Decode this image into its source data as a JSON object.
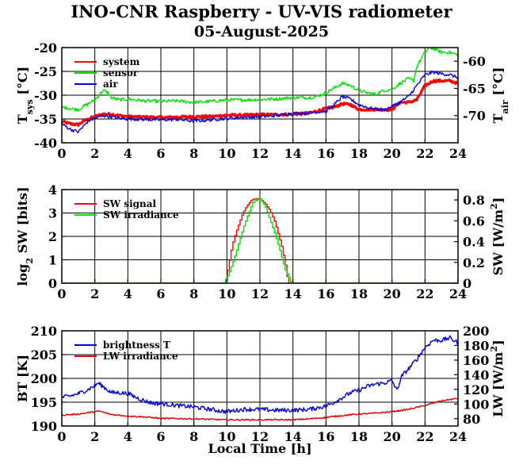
{
  "title": "INO-CNR Raspberry - UV-VIS radiometer",
  "subtitle": "05-August-2025",
  "chart_data": [
    {
      "type": "line",
      "xlabel": "",
      "xlim": [
        0,
        24
      ],
      "xticks": [
        "0",
        "2",
        "4",
        "6",
        "8",
        "10",
        "12",
        "14",
        "16",
        "18",
        "20",
        "22",
        "24"
      ],
      "ylabel": "T_sys [°C]",
      "ylim": [
        -40,
        -20
      ],
      "yticks": [
        "-40",
        "-35",
        "-30",
        "-25",
        "-20"
      ],
      "y2label": "T_air [°C]",
      "y2lim": [
        -75,
        -57.5
      ],
      "y2ticks": [
        "-70",
        "-65",
        "-60"
      ],
      "grid": true,
      "legend": "top-left",
      "series": [
        {
          "name": "system",
          "color": "#ff0000",
          "axis": "left",
          "width": 3.2,
          "jitter": 0.25,
          "points": [
            [
              0,
              -35.5
            ],
            [
              0.5,
              -36
            ],
            [
              1,
              -36.2
            ],
            [
              1.3,
              -35.5
            ],
            [
              1.6,
              -35
            ],
            [
              2,
              -34.5
            ],
            [
              2.5,
              -34
            ],
            [
              3,
              -34
            ],
            [
              3.5,
              -34.3
            ],
            [
              4,
              -34.5
            ],
            [
              5,
              -34.6
            ],
            [
              6,
              -34.7
            ],
            [
              7,
              -34.6
            ],
            [
              8,
              -34.5
            ],
            [
              9,
              -34.5
            ],
            [
              10,
              -34.2
            ],
            [
              11,
              -34.2
            ],
            [
              12,
              -34.1
            ],
            [
              13,
              -34.1
            ],
            [
              14,
              -34
            ],
            [
              15,
              -33.8
            ],
            [
              16,
              -32.8
            ],
            [
              16.5,
              -32.5
            ],
            [
              17,
              -31.8
            ],
            [
              17.5,
              -32
            ],
            [
              18,
              -33
            ],
            [
              19,
              -33
            ],
            [
              20,
              -33
            ],
            [
              20.5,
              -31.5
            ],
            [
              21,
              -31.5
            ],
            [
              21.5,
              -31
            ],
            [
              22,
              -28
            ],
            [
              22.5,
              -27
            ],
            [
              23,
              -27
            ],
            [
              23.5,
              -27
            ],
            [
              24,
              -27.5
            ]
          ]
        },
        {
          "name": "sensor",
          "color": "#00e000",
          "axis": "left",
          "width": 1.4,
          "jitter": 0.35,
          "points": [
            [
              0,
              -32.5
            ],
            [
              0.5,
              -32.8
            ],
            [
              1,
              -33
            ],
            [
              1.5,
              -32
            ],
            [
              2,
              -31
            ],
            [
              2.3,
              -29.8
            ],
            [
              2.5,
              -29
            ],
            [
              2.8,
              -29.5
            ],
            [
              3,
              -30.5
            ],
            [
              3.5,
              -31
            ],
            [
              4,
              -30.8
            ],
            [
              5,
              -31.2
            ],
            [
              6,
              -31.3
            ],
            [
              7,
              -31.2
            ],
            [
              8,
              -31.5
            ],
            [
              9,
              -31.3
            ],
            [
              10,
              -31
            ],
            [
              11,
              -31
            ],
            [
              12,
              -30.9
            ],
            [
              13,
              -30.8
            ],
            [
              14,
              -30.5
            ],
            [
              15,
              -30.5
            ],
            [
              15.5,
              -30.2
            ],
            [
              16,
              -29.5
            ],
            [
              16.5,
              -28.5
            ],
            [
              17,
              -27.5
            ],
            [
              17.5,
              -28
            ],
            [
              18,
              -29
            ],
            [
              18.5,
              -29.5
            ],
            [
              19,
              -29.8
            ],
            [
              19.5,
              -29
            ],
            [
              20,
              -28.8
            ],
            [
              20.5,
              -27.5
            ],
            [
              21,
              -26.5
            ],
            [
              21.3,
              -27
            ],
            [
              21.5,
              -24
            ],
            [
              22,
              -21
            ],
            [
              22.3,
              -20
            ],
            [
              22.7,
              -20.5
            ],
            [
              23,
              -21
            ],
            [
              23.5,
              -21
            ],
            [
              24,
              -21.5
            ]
          ]
        },
        {
          "name": "air",
          "color": "#0000dd",
          "axis": "right",
          "width": 1.4,
          "jitter": 0.3,
          "points": [
            [
              0,
              -71.5
            ],
            [
              0.5,
              -72.5
            ],
            [
              1,
              -73
            ],
            [
              1.3,
              -72
            ],
            [
              1.6,
              -71
            ],
            [
              2,
              -70.5
            ],
            [
              2.5,
              -70
            ],
            [
              3,
              -70.2
            ],
            [
              3.5,
              -70.5
            ],
            [
              4,
              -70.6
            ],
            [
              5,
              -70.7
            ],
            [
              6,
              -70.8
            ],
            [
              7,
              -70.7
            ],
            [
              8,
              -71
            ],
            [
              9,
              -70.8
            ],
            [
              10,
              -70.5
            ],
            [
              11,
              -70.3
            ],
            [
              12,
              -70.2
            ],
            [
              13,
              -70
            ],
            [
              14,
              -69.6
            ],
            [
              15,
              -69.5
            ],
            [
              15.5,
              -69.3
            ],
            [
              16,
              -69.2
            ],
            [
              16.5,
              -68
            ],
            [
              17,
              -66.5
            ],
            [
              17.5,
              -67
            ],
            [
              18,
              -68
            ],
            [
              18.5,
              -68.5
            ],
            [
              19,
              -68.8
            ],
            [
              19.5,
              -69
            ],
            [
              20,
              -68.3
            ],
            [
              20.5,
              -67.5
            ],
            [
              21,
              -66.5
            ],
            [
              21.5,
              -64.5
            ],
            [
              22,
              -62.5
            ],
            [
              22.5,
              -62
            ],
            [
              23,
              -62.3
            ],
            [
              23.5,
              -62.5
            ],
            [
              24,
              -63
            ]
          ]
        }
      ]
    },
    {
      "type": "line",
      "xlabel": "",
      "xlim": [
        0,
        24
      ],
      "xticks": [
        "0",
        "2",
        "4",
        "6",
        "8",
        "10",
        "12",
        "14",
        "16",
        "18",
        "20",
        "22",
        "24"
      ],
      "ylabel": "log2 SW [bits]",
      "ylim": [
        0,
        4
      ],
      "yticks": [
        "0",
        "1",
        "2",
        "3",
        "4"
      ],
      "y2label": "SW [W/m2]",
      "y2lim": [
        0,
        0.9
      ],
      "y2ticks": [
        "0",
        "0.2",
        "0.4",
        "0.6",
        "0.8"
      ],
      "grid": true,
      "legend": "top-left",
      "series": [
        {
          "name": "SW signal",
          "color": "#ff0000",
          "axis": "left",
          "width": 1.4,
          "step": true,
          "points": [
            [
              0,
              0
            ],
            [
              9.9,
              0
            ],
            [
              10.1,
              0.8
            ],
            [
              10.3,
              1.6
            ],
            [
              10.5,
              2.1
            ],
            [
              10.7,
              2.5
            ],
            [
              10.9,
              2.9
            ],
            [
              11.1,
              3.2
            ],
            [
              11.4,
              3.5
            ],
            [
              11.6,
              3.6
            ],
            [
              12.0,
              3.6
            ],
            [
              12.3,
              3.4
            ],
            [
              12.6,
              3.1
            ],
            [
              12.9,
              2.6
            ],
            [
              13.1,
              2.1
            ],
            [
              13.3,
              1.6
            ],
            [
              13.5,
              0.9
            ],
            [
              13.7,
              0
            ],
            [
              24,
              0
            ]
          ]
        },
        {
          "name": "SW irradiance",
          "color": "#00e000",
          "axis": "left",
          "width": 1.4,
          "step": true,
          "points": [
            [
              0,
              0
            ],
            [
              9.8,
              0
            ],
            [
              10.1,
              0.4
            ],
            [
              10.4,
              1.0
            ],
            [
              10.7,
              1.7
            ],
            [
              11.0,
              2.4
            ],
            [
              11.3,
              3.0
            ],
            [
              11.6,
              3.5
            ],
            [
              12.0,
              3.6
            ],
            [
              12.3,
              3.3
            ],
            [
              12.6,
              2.7
            ],
            [
              12.9,
              2.1
            ],
            [
              13.2,
              1.4
            ],
            [
              13.5,
              0.6
            ],
            [
              13.9,
              0
            ],
            [
              24,
              0
            ]
          ]
        }
      ]
    },
    {
      "type": "line",
      "xlabel": "Local Time [h]",
      "xlim": [
        0,
        24
      ],
      "xticks": [
        "0",
        "2",
        "4",
        "6",
        "8",
        "10",
        "12",
        "14",
        "16",
        "18",
        "20",
        "22",
        "24"
      ],
      "ylabel": "BT [K]",
      "ylim": [
        190,
        210
      ],
      "yticks": [
        "190",
        "195",
        "200",
        "205",
        "210"
      ],
      "y2label": "LW [W/m2]",
      "y2lim": [
        70,
        200
      ],
      "y2ticks": [
        "80",
        "100",
        "120",
        "140",
        "160",
        "180",
        "200"
      ],
      "grid": true,
      "legend": "top-left",
      "series": [
        {
          "name": "brightness T",
          "color": "#0000dd",
          "axis": "left",
          "width": 1.4,
          "jitter": 0.45,
          "points": [
            [
              0,
              196
            ],
            [
              0.5,
              196.3
            ],
            [
              1,
              196.8
            ],
            [
              1.5,
              197.5
            ],
            [
              2,
              198.5
            ],
            [
              2.2,
              199
            ],
            [
              2.5,
              198.3
            ],
            [
              3,
              197
            ],
            [
              3.5,
              197
            ],
            [
              4,
              196.8
            ],
            [
              4.5,
              196
            ],
            [
              5,
              195.3
            ],
            [
              5.5,
              194.8
            ],
            [
              6,
              194.7
            ],
            [
              7,
              194.3
            ],
            [
              8,
              194
            ],
            [
              9,
              193.5
            ],
            [
              9.5,
              193.2
            ],
            [
              10,
              193
            ],
            [
              11,
              193.5
            ],
            [
              12,
              193.5
            ],
            [
              13,
              193.3
            ],
            [
              14,
              193.3
            ],
            [
              15,
              193.5
            ],
            [
              16,
              194.2
            ],
            [
              16.5,
              195
            ],
            [
              17,
              196
            ],
            [
              17.5,
              197
            ],
            [
              18,
              197.5
            ],
            [
              18.5,
              198.3
            ],
            [
              19,
              198.8
            ],
            [
              19.5,
              199
            ],
            [
              20,
              199.5
            ],
            [
              20.3,
              197.5
            ],
            [
              20.6,
              200.5
            ],
            [
              21,
              202
            ],
            [
              21.5,
              204
            ],
            [
              22,
              206.5
            ],
            [
              22.5,
              208
            ],
            [
              23,
              208
            ],
            [
              23.5,
              208.5
            ],
            [
              24,
              207.5
            ]
          ]
        },
        {
          "name": "LW irradiance",
          "color": "#dd0000",
          "axis": "left",
          "width": 1.4,
          "jitter": 0.15,
          "points": [
            [
              0,
              192.3
            ],
            [
              1,
              192.5
            ],
            [
              2,
              193
            ],
            [
              2.3,
              193.1
            ],
            [
              3,
              192.4
            ],
            [
              4,
              192.1
            ],
            [
              5,
              191.9
            ],
            [
              6,
              191.6
            ],
            [
              8,
              191.5
            ],
            [
              10,
              191.3
            ],
            [
              12,
              191.3
            ],
            [
              14,
              191.3
            ],
            [
              15,
              191.5
            ],
            [
              16,
              191.8
            ],
            [
              17,
              192.2
            ],
            [
              18,
              192.5
            ],
            [
              19,
              192.7
            ],
            [
              20,
              193
            ],
            [
              21,
              193.5
            ],
            [
              22,
              194.3
            ],
            [
              23,
              195.3
            ],
            [
              24,
              195.8
            ]
          ]
        }
      ]
    }
  ]
}
